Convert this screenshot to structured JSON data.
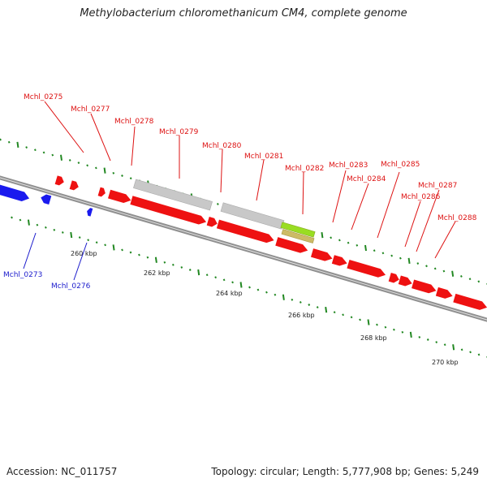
{
  "title": "Methylobacterium chloromethanicum CM4, complete genome",
  "footer": {
    "accession": "Accession: NC_011757",
    "summary": "Topology: circular; Length: 5,777,908 bp; Genes: 5,249"
  },
  "colors": {
    "forward_gene": "#ee1111",
    "reverse_gene": "#1a1aee",
    "other_feature": "#c8c8c8",
    "highlight_feature": "#99dd22",
    "tick": "#228822",
    "backbone": "#888888",
    "forward_label": "#dd1111",
    "reverse_label": "#1a1acc"
  },
  "ticks": {
    "labels": [
      "260 kbp",
      "262 kbp",
      "264 kbp",
      "266 kbp",
      "268 kbp",
      "270 kbp"
    ]
  },
  "gene_labels": {
    "forward": [
      "Mchl_0275",
      "Mchl_0277",
      "Mchl_0278",
      "Mchl_0279",
      "Mchl_0280",
      "Mchl_0281",
      "Mchl_0282",
      "Mchl_0283",
      "Mchl_0284",
      "Mchl_0285",
      "Mchl_0286",
      "Mchl_0287",
      "Mchl_0288"
    ],
    "reverse": [
      "Mchl_0273",
      "Mchl_0276"
    ]
  }
}
